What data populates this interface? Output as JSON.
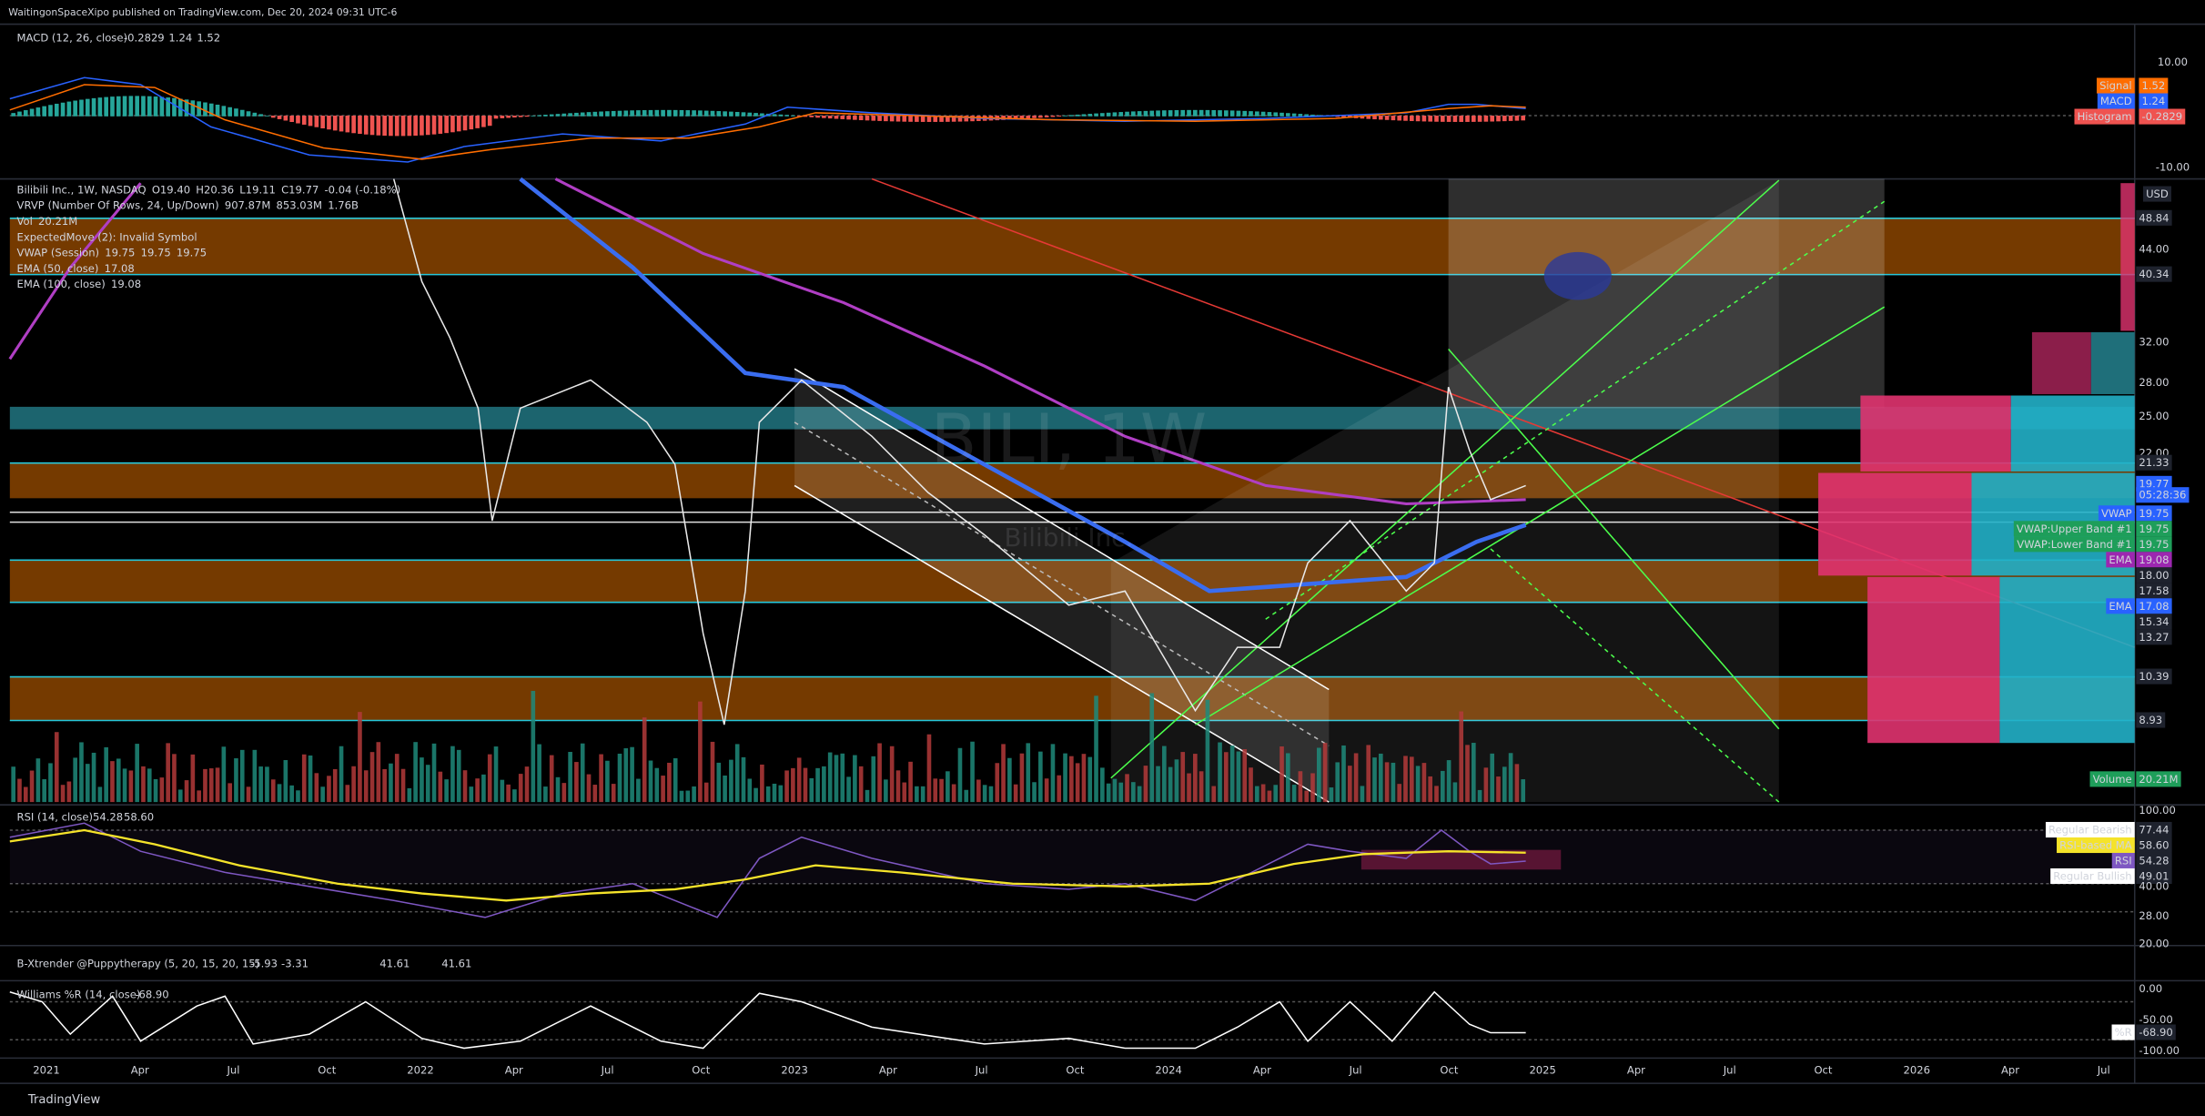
{
  "header": {
    "publisher": "WaitingonSpaceXipo published on TradingView.com, Dec 20, 2024 09:31 UTC-6"
  },
  "macd": {
    "legend": "MACD (12, 26, close)",
    "values": [
      "-0.2829",
      "1.24",
      "1.52"
    ],
    "axis": [
      "10.00",
      "-10.00"
    ],
    "badges": [
      {
        "label": "Signal",
        "value": "1.52"
      },
      {
        "label": "MACD",
        "value": "1.24"
      },
      {
        "label": "Histogram",
        "value": "-0.2829"
      }
    ]
  },
  "main": {
    "legend": [
      [
        "Bilibili Inc., 1W, NASDAQ",
        "O19.40",
        "H20.36",
        "L19.11",
        "C19.77",
        "-0.04 (-0.18%)"
      ],
      [
        "VRVP (Number Of Rows, 24, Up/Down)",
        "907.87M",
        "853.03M",
        "1.76B"
      ],
      [
        "Vol",
        "20.21M"
      ],
      [
        "ExpectedMove (2): Invalid Symbol"
      ],
      [
        "VWAP (Session)",
        "19.75",
        "19.75",
        "19.75"
      ],
      [
        "EMA (50, close)",
        "17.08"
      ],
      [
        "EMA (100, close)",
        "19.08"
      ]
    ],
    "watermark": "BILI, 1W",
    "watermark_sub": "Bilibili Inc.",
    "currency": "USD",
    "axis": [
      "48.84",
      "44.00",
      "40.34",
      "32.00",
      "28.00",
      "25.00",
      "22.00",
      "21.33",
      "19.77",
      "05:28:36",
      "19.75",
      "19.75",
      "19.75",
      "19.08",
      "18.00",
      "17.58",
      "17.08",
      "15.34",
      "13.27",
      "10.39",
      "8.93",
      "20.21M"
    ],
    "tags": [
      "VWAP",
      "VWAP:Upper Band #1",
      "VWAP:Lower Band #1",
      "EMA",
      "EMA",
      "Volume"
    ]
  },
  "rsi": {
    "legend": "RSI (14, close)",
    "values": [
      "54.28",
      "58.60"
    ],
    "axis": [
      "100.00",
      "77.44",
      "58.60",
      "54.28",
      "49.01",
      "40.00",
      "28.00",
      "20.00"
    ],
    "tags": [
      "Regular Bearish",
      "RSI-based MA",
      "RSI",
      "Regular Bullish"
    ]
  },
  "xtrender": {
    "legend": "B-Xtrender @Puppytherapy (5, 20, 15, 20, 15)",
    "values": [
      "-5.93",
      "-3.31",
      "41.61",
      "41.61"
    ]
  },
  "williams": {
    "legend": "Williams %R (14, close)",
    "value": "-68.90",
    "axis": [
      "0.00",
      "-50.00",
      "-68.90",
      "-100.00"
    ],
    "tag": "%R"
  },
  "time_axis": [
    "2021",
    "Apr",
    "Jul",
    "Oct",
    "2022",
    "Apr",
    "Jul",
    "Oct",
    "2023",
    "Apr",
    "Jul",
    "Oct",
    "2024",
    "Apr",
    "Jul",
    "Oct",
    "2025",
    "Apr",
    "Jul",
    "Oct",
    "2026",
    "Apr",
    "Jul"
  ],
  "footer": {
    "brand": "TradingView"
  }
}
